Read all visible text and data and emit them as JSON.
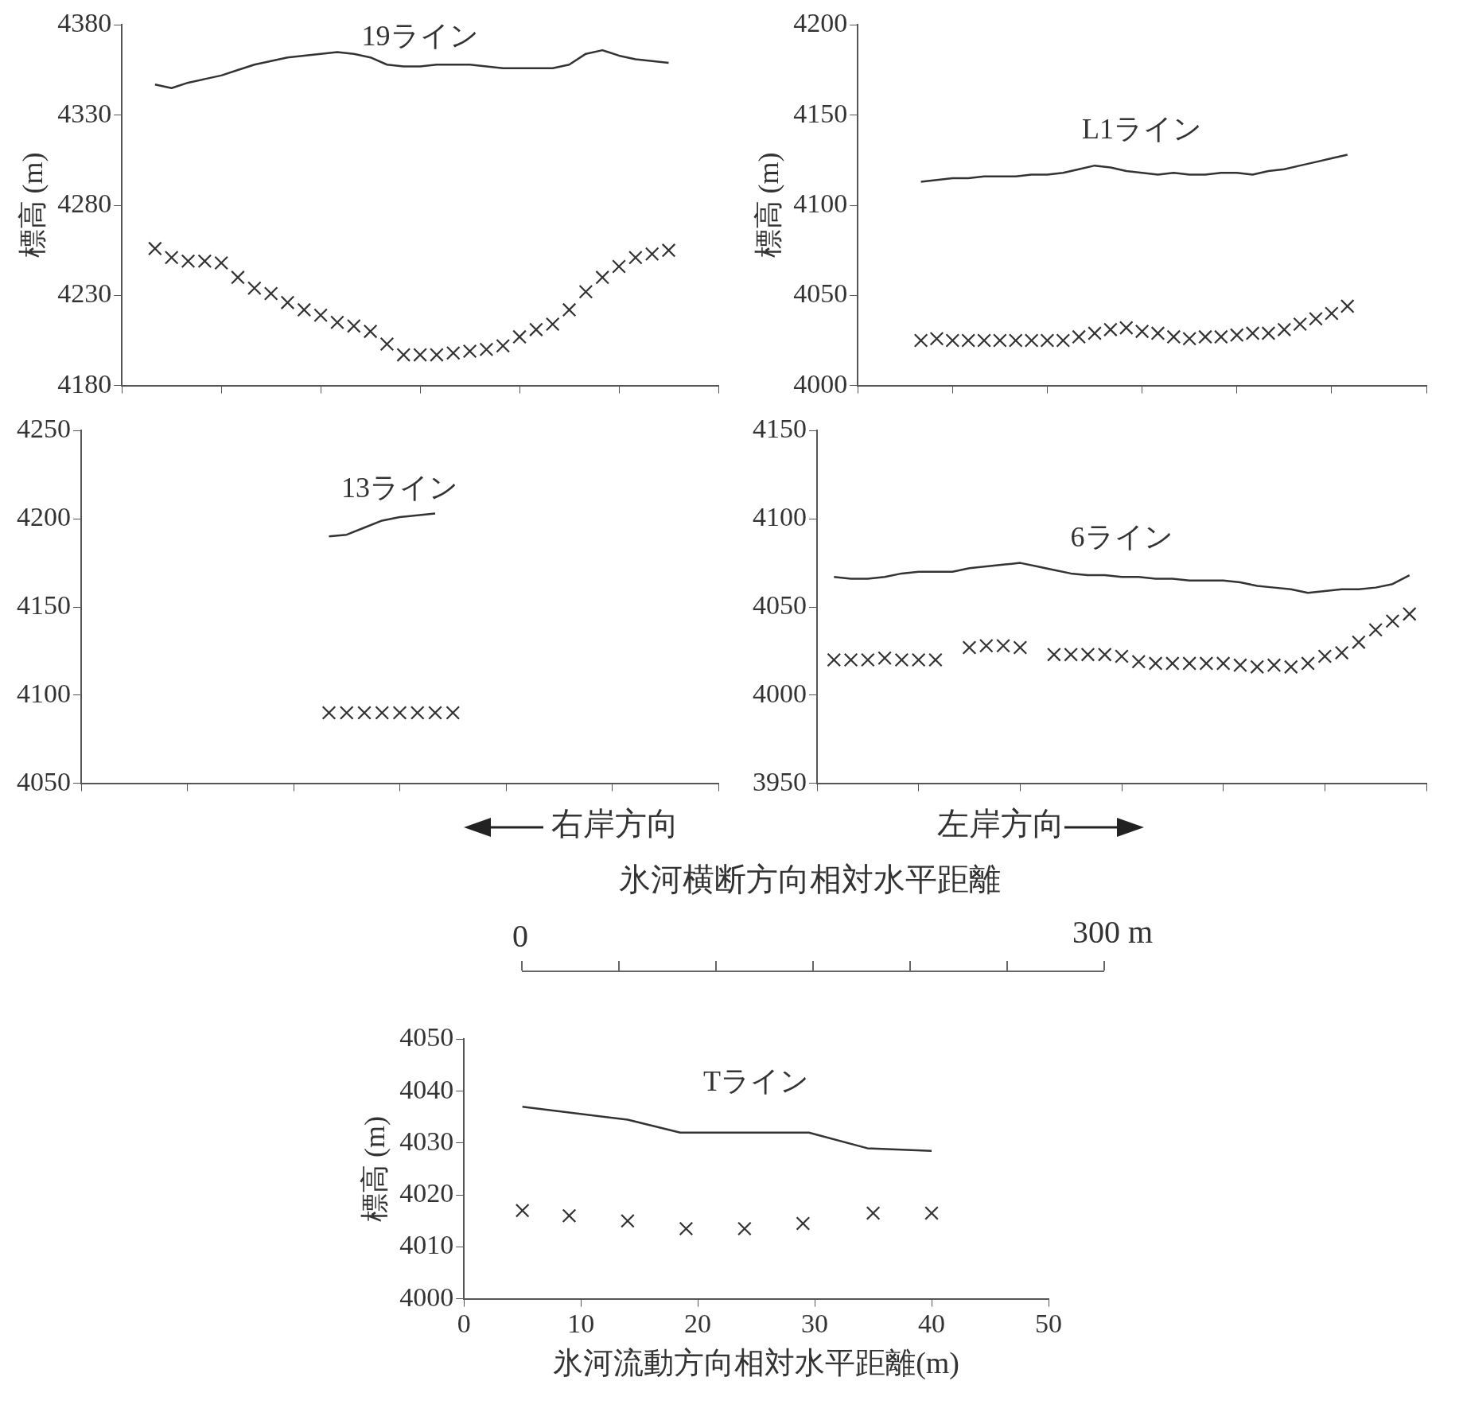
{
  "chart_data": [
    {
      "type": "line",
      "title": "19ライン",
      "ylabel": "標高 (m)",
      "categories": [
        null,
        null,
        null,
        null,
        null,
        null,
        null,
        null,
        null,
        null,
        null,
        null,
        null,
        null,
        null,
        null,
        null,
        null,
        null,
        null,
        null,
        null,
        null,
        null,
        null,
        null,
        null,
        null,
        null,
        null,
        null,
        null,
        null,
        null,
        null,
        null,
        null
      ],
      "ylim": [
        4180,
        4380
      ],
      "yticks": [
        4180,
        4230,
        4280,
        4330,
        4380
      ],
      "tick_labels": "y",
      "series": [
        {
          "type": "line",
          "marker": "none",
          "color": "#333333",
          "values": [
            null,
            null,
            4347,
            4345,
            4348,
            4350,
            4352,
            4355,
            4358,
            4360,
            4362,
            4363,
            4364,
            4365,
            4364,
            4362,
            4358,
            4357,
            4357,
            4358,
            4358,
            4358,
            4357,
            4356,
            4356,
            4356,
            4356,
            4358,
            4364,
            4366,
            4363,
            4361,
            4360,
            4359,
            null,
            null,
            null
          ]
        },
        {
          "type": "scatter",
          "marker": "cross",
          "color": "#333333",
          "values": [
            null,
            null,
            4256,
            4251,
            4249,
            4249,
            4248,
            4240,
            4234,
            4231,
            4226,
            4222,
            4219,
            4215,
            4213,
            4210,
            4203,
            4197,
            4197,
            4197,
            4198,
            4199,
            4200,
            4202,
            4207,
            4211,
            4214,
            4222,
            4232,
            4240,
            4246,
            4251,
            4253,
            4255,
            null,
            null,
            null
          ]
        }
      ]
    },
    {
      "type": "line",
      "title": "L1ライン",
      "ylabel": "標高 (m)",
      "categories": [
        null,
        null,
        null,
        null,
        null,
        null,
        null,
        null,
        null,
        null,
        null,
        null,
        null,
        null,
        null,
        null,
        null,
        null,
        null,
        null,
        null,
        null,
        null,
        null,
        null,
        null,
        null,
        null,
        null,
        null,
        null,
        null,
        null,
        null,
        null,
        null,
        null
      ],
      "ylim": [
        4000,
        4200
      ],
      "yticks": [
        4000,
        4050,
        4100,
        4150,
        4200
      ],
      "tick_labels": "y",
      "series": [
        {
          "type": "line",
          "marker": "none",
          "color": "#333333",
          "values": [
            null,
            null,
            null,
            null,
            4113,
            4114,
            4115,
            4115,
            4116,
            4116,
            4116,
            4117,
            4117,
            4118,
            4120,
            4122,
            4121,
            4119,
            4118,
            4117,
            4118,
            4117,
            4117,
            4118,
            4118,
            4117,
            4119,
            4120,
            4122,
            4124,
            4126,
            4128,
            null,
            null,
            null,
            null,
            null
          ]
        },
        {
          "type": "scatter",
          "marker": "cross",
          "color": "#333333",
          "values": [
            null,
            null,
            null,
            null,
            4025,
            4026,
            4025,
            4025,
            4025,
            4025,
            4025,
            4025,
            4025,
            4025,
            4027,
            4029,
            4031,
            4032,
            4030,
            4029,
            4027,
            4026,
            4027,
            4027,
            4028,
            4029,
            4029,
            4031,
            4034,
            4037,
            4040,
            4044,
            null,
            null,
            null,
            null,
            null
          ]
        }
      ]
    },
    {
      "type": "line",
      "title": "13ライン",
      "categories": [
        null,
        null,
        null,
        null,
        null,
        null,
        null,
        null,
        null,
        null,
        null,
        null,
        null,
        null,
        null,
        null,
        null,
        null,
        null,
        null,
        null,
        null,
        null,
        null,
        null,
        null,
        null,
        null,
        null,
        null,
        null,
        null,
        null,
        null,
        null,
        null,
        null
      ],
      "ylim": [
        4050,
        4250
      ],
      "yticks": [
        4050,
        4100,
        4150,
        4200,
        4250
      ],
      "tick_labels": "y",
      "series": [
        {
          "type": "line",
          "marker": "none",
          "color": "#333333",
          "values": [
            null,
            null,
            null,
            null,
            null,
            null,
            null,
            null,
            null,
            null,
            null,
            null,
            null,
            null,
            4190,
            4191,
            4195,
            4199,
            4201,
            4202,
            4203,
            null,
            null,
            null,
            null,
            null,
            null,
            null,
            null,
            null,
            null,
            null,
            null,
            null,
            null,
            null,
            null
          ]
        },
        {
          "type": "scatter",
          "marker": "cross",
          "color": "#333333",
          "values": [
            null,
            null,
            null,
            null,
            null,
            null,
            null,
            null,
            null,
            null,
            null,
            null,
            null,
            null,
            4090,
            4090,
            4090,
            4090,
            4090,
            4090,
            4090,
            4090,
            null,
            null,
            null,
            null,
            null,
            null,
            null,
            null,
            null,
            null,
            null,
            null,
            null,
            null,
            null
          ]
        }
      ]
    },
    {
      "type": "line",
      "title": "6ライン",
      "categories": [
        null,
        null,
        null,
        null,
        null,
        null,
        null,
        null,
        null,
        null,
        null,
        null,
        null,
        null,
        null,
        null,
        null,
        null,
        null,
        null,
        null,
        null,
        null,
        null,
        null,
        null,
        null,
        null,
        null,
        null,
        null,
        null,
        null,
        null,
        null,
        null,
        null
      ],
      "ylim": [
        3950,
        4150
      ],
      "yticks": [
        3950,
        4000,
        4050,
        4100,
        4150
      ],
      "tick_labels": "y",
      "series": [
        {
          "type": "line",
          "marker": "none",
          "color": "#333333",
          "values": [
            null,
            4067,
            4066,
            4066,
            4067,
            4069,
            4070,
            4070,
            4070,
            4072,
            4073,
            4074,
            4075,
            4073,
            4071,
            4069,
            4068,
            4068,
            4067,
            4067,
            4066,
            4066,
            4065,
            4065,
            4065,
            4064,
            4062,
            4061,
            4060,
            4058,
            4059,
            4060,
            4060,
            4061,
            4063,
            4068,
            null
          ]
        },
        {
          "type": "scatter",
          "marker": "cross",
          "color": "#333333",
          "values": [
            null,
            4020,
            4020,
            4020,
            4021,
            4020,
            4020,
            4020,
            null,
            4027,
            4028,
            4028,
            4027,
            null,
            4023,
            4023,
            4023,
            4023,
            4022,
            4019,
            4018,
            4018,
            4018,
            4018,
            4018,
            4017,
            4016,
            4017,
            4016,
            4018,
            4022,
            4024,
            4030,
            4037,
            4042,
            4046,
            null
          ]
        }
      ]
    },
    {
      "type": "other",
      "annotations": [
        "右岸方向",
        "左岸方向",
        "氷河横断方向相対水平距離",
        "0",
        "300 m"
      ]
    },
    {
      "type": "line",
      "title": "Tライン",
      "xlabel": "氷河流動方向相対水平距離(m)",
      "ylabel": "標高 (m)",
      "xlim": [
        0,
        50
      ],
      "xticks": [
        0,
        10,
        20,
        30,
        40,
        50
      ],
      "ylim": [
        4000,
        4050
      ],
      "yticks": [
        4000,
        4010,
        4020,
        4030,
        4040,
        4050
      ],
      "series": [
        {
          "type": "line",
          "marker": "none",
          "color": "#333333",
          "x": [
            5,
            14,
            18.5,
            29.5,
            34.5,
            40
          ],
          "values": [
            4037,
            4034.5,
            4032,
            4032,
            4029,
            4028.5
          ]
        },
        {
          "type": "scatter",
          "marker": "cross",
          "color": "#333333",
          "x": [
            5,
            9,
            14,
            19,
            24,
            29,
            35,
            40
          ],
          "values": [
            4017,
            4016,
            4015,
            4013.5,
            4013.5,
            4014.5,
            4016.5,
            4016.5
          ]
        }
      ]
    }
  ]
}
